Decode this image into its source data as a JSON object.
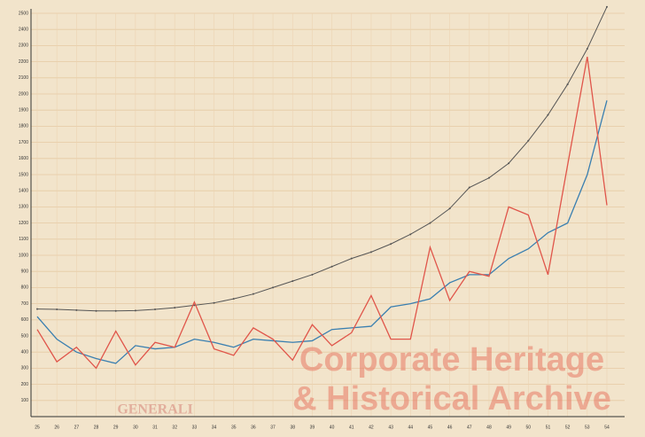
{
  "chart_data": {
    "type": "line",
    "categories": [
      "25",
      "26",
      "27",
      "28",
      "29",
      "30",
      "31",
      "32",
      "33",
      "34",
      "35",
      "36",
      "37",
      "38",
      "39",
      "40",
      "41",
      "42",
      "43",
      "44",
      "45",
      "46",
      "47",
      "48",
      "49",
      "50",
      "51",
      "52",
      "53",
      "54"
    ],
    "series": [
      {
        "color": "#555555",
        "values": [
          667,
          665,
          660,
          655,
          655,
          657,
          665,
          675,
          690,
          705,
          730,
          760,
          800,
          840,
          880,
          930,
          980,
          1020,
          1070,
          1130,
          1200,
          1290,
          1420,
          1480,
          1570,
          1710,
          1870,
          2060,
          2280,
          2540
        ]
      },
      {
        "color": "#3a7fb0",
        "values": [
          620,
          480,
          400,
          360,
          330,
          440,
          420,
          430,
          480,
          460,
          430,
          480,
          470,
          460,
          470,
          540,
          550,
          560,
          680,
          700,
          730,
          830,
          880,
          880,
          980,
          1040,
          1140,
          1200,
          1500,
          1960
        ]
      },
      {
        "color": "#e0554a",
        "values": [
          540,
          340,
          430,
          300,
          530,
          320,
          460,
          430,
          710,
          420,
          380,
          550,
          480,
          350,
          570,
          440,
          520,
          750,
          480,
          480,
          1050,
          720,
          900,
          870,
          1300,
          1250,
          880,
          1560,
          2230,
          1310
        ]
      }
    ],
    "ylim": [
      0,
      2500
    ],
    "yticks": [
      100,
      200,
      300,
      400,
      500,
      600,
      700,
      800,
      900,
      1000,
      1100,
      1200,
      1300,
      1400,
      1500,
      1600,
      1700,
      1800,
      1900,
      2000,
      2100,
      2200,
      2300,
      2400,
      2500
    ],
    "grid": true,
    "annotations": [
      "Corporate Heritage",
      "& Historical Archive",
      "GENERALI"
    ]
  }
}
